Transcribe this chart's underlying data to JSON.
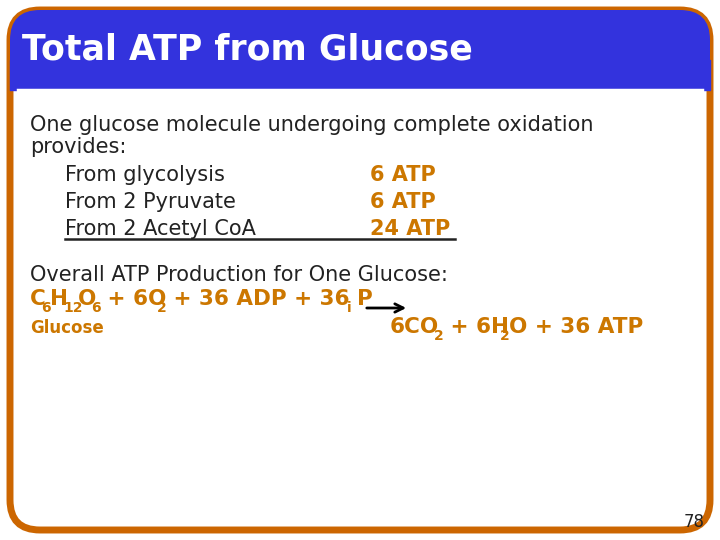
{
  "title": "Total ATP from Glucose",
  "title_color": "#ffffff",
  "title_bg_color": "#3333dd",
  "border_color": "#cc6600",
  "bg_color": "#ffffff",
  "orange_color": "#cc7700",
  "black_color": "#111111",
  "dark_color": "#222222",
  "page_number": "78",
  "line1": "One glucose molecule undergoing complete oxidation",
  "line2": "provides:",
  "row1_label": "From glycolysis",
  "row1_value": "6 ATP",
  "row2_label": "From 2 Pyruvate",
  "row2_value": "6 ATP",
  "row3_label": "From 2 Acetyl CoA",
  "row3_value": "24 ATP",
  "overall_label": "Overall ATP Production for One Glucose:",
  "glucose_label": "Glucose"
}
